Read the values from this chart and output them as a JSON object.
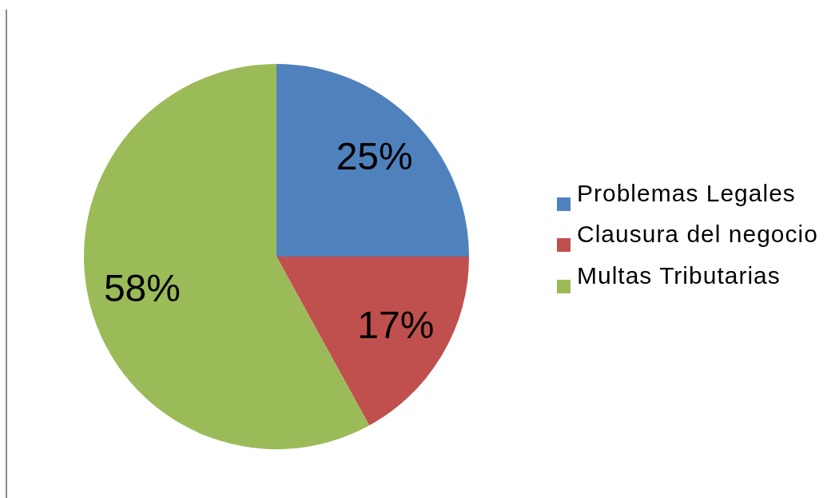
{
  "chart_data": {
    "type": "pie",
    "categories": [
      "Problemas Legales",
      "Clausura del negocio",
      "Multas Tributarias"
    ],
    "values": [
      25,
      17,
      58
    ],
    "colors": [
      "#4f81bd",
      "#c0504d",
      "#9bbb59"
    ],
    "value_labels": [
      "25%",
      "17%",
      "58%"
    ],
    "legend": "right"
  }
}
